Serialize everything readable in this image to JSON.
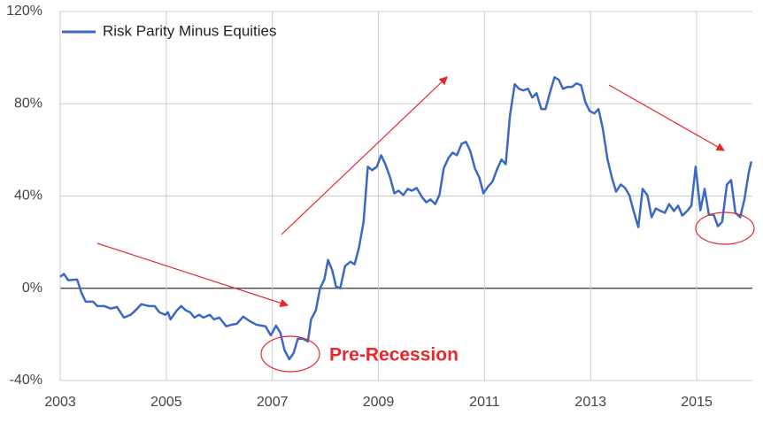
{
  "chart_data": {
    "type": "line",
    "x": [
      2003.0,
      2003.07,
      2003.15,
      2003.32,
      2003.4,
      2003.48,
      2003.62,
      2003.7,
      2003.83,
      2003.95,
      2004.07,
      2004.2,
      2004.33,
      2004.42,
      2004.53,
      2004.67,
      2004.78,
      2004.87,
      2004.98,
      2005.03,
      2005.08,
      2005.2,
      2005.28,
      2005.37,
      2005.45,
      2005.53,
      2005.62,
      2005.7,
      2005.82,
      2005.9,
      2006.0,
      2006.13,
      2006.23,
      2006.33,
      2006.45,
      2006.57,
      2006.7,
      2006.87,
      2006.97,
      2007.07,
      2007.15,
      2007.23,
      2007.32,
      2007.4,
      2007.48,
      2007.58,
      2007.67,
      2007.73,
      2007.82,
      2007.9,
      2007.98,
      2008.05,
      2008.13,
      2008.2,
      2008.28,
      2008.37,
      2008.47,
      2008.55,
      2008.63,
      2008.72,
      2008.8,
      2008.88,
      2008.97,
      2009.05,
      2009.13,
      2009.22,
      2009.3,
      2009.38,
      2009.47,
      2009.55,
      2009.63,
      2009.72,
      2009.82,
      2009.9,
      2009.98,
      2010.07,
      2010.15,
      2010.23,
      2010.32,
      2010.4,
      2010.48,
      2010.57,
      2010.65,
      2010.73,
      2010.82,
      2010.9,
      2010.98,
      2011.07,
      2011.15,
      2011.23,
      2011.32,
      2011.4,
      2011.48,
      2011.57,
      2011.65,
      2011.73,
      2011.82,
      2011.9,
      2011.98,
      2012.07,
      2012.15,
      2012.23,
      2012.32,
      2012.4,
      2012.48,
      2012.57,
      2012.65,
      2012.73,
      2012.82,
      2012.9,
      2012.98,
      2013.07,
      2013.15,
      2013.23,
      2013.32,
      2013.4,
      2013.48,
      2013.57,
      2013.65,
      2013.73,
      2013.82,
      2013.9,
      2013.98,
      2014.07,
      2014.15,
      2014.23,
      2014.32,
      2014.4,
      2014.48,
      2014.57,
      2014.65,
      2014.73,
      2014.82,
      2014.9,
      2014.98,
      2015.07,
      2015.15,
      2015.23,
      2015.32,
      2015.4,
      2015.48,
      2015.57,
      2015.65,
      2015.73,
      2015.82,
      2015.9,
      2015.98,
      2016.03
    ],
    "series": [
      {
        "name": "Risk Parity Minus Equities",
        "color": "#3b68c4",
        "values": [
          5.0,
          6.2,
          3.5,
          3.8,
          -1.9,
          -5.8,
          -5.8,
          -7.7,
          -7.7,
          -8.8,
          -8.1,
          -12.7,
          -11.5,
          -9.6,
          -6.9,
          -7.7,
          -7.7,
          -10.4,
          -11.5,
          -10.4,
          -13.5,
          -9.6,
          -7.7,
          -9.6,
          -10.4,
          -12.7,
          -11.5,
          -12.7,
          -11.5,
          -13.5,
          -12.7,
          -16.5,
          -15.8,
          -15.4,
          -12.3,
          -14.2,
          -15.8,
          -16.5,
          -20.4,
          -16.2,
          -19.2,
          -26.9,
          -30.8,
          -28.1,
          -21.9,
          -21.9,
          -23.1,
          -13.5,
          -9.6,
          0,
          3.8,
          12.3,
          7.7,
          0.8,
          0,
          9.6,
          11.5,
          10.4,
          17.3,
          28.8,
          52.7,
          51.2,
          52.7,
          57.7,
          53.8,
          48.1,
          41.2,
          42.3,
          40.4,
          43.1,
          42.3,
          43.5,
          39.6,
          37.3,
          38.5,
          36.5,
          40.4,
          51.9,
          56.5,
          58.8,
          57.7,
          62.7,
          63.5,
          59.6,
          51.9,
          48.1,
          41.2,
          44.2,
          46.2,
          51.2,
          55.8,
          53.8,
          75.0,
          88.5,
          86.5,
          85.8,
          86.5,
          82.7,
          84.6,
          77.7,
          77.7,
          84.6,
          91.5,
          90.4,
          86.5,
          87.3,
          87.3,
          88.8,
          88.1,
          80.8,
          76.9,
          75.8,
          77.7,
          69.2,
          55.8,
          48.1,
          41.9,
          45.0,
          43.5,
          40.4,
          32.7,
          26.5,
          43.1,
          40.4,
          30.8,
          34.6,
          33.5,
          32.7,
          36.5,
          33.5,
          35.8,
          31.5,
          33.5,
          35.8,
          52.7,
          33.8,
          43.1,
          31.9,
          31.9,
          26.9,
          28.8,
          45.0,
          46.9,
          32.7,
          30.8,
          38.5,
          50.0,
          55.0
        ]
      }
    ],
    "xlim": [
      2003,
      2016.05
    ],
    "xticks": [
      2003,
      2005,
      2007,
      2009,
      2011,
      2013,
      2015
    ],
    "ylim": [
      -40,
      120
    ],
    "yticks": [
      {
        "value": -40,
        "label": "-40%"
      },
      {
        "value": 0,
        "label": "0%"
      },
      {
        "value": 40,
        "label": "40%"
      },
      {
        "value": 80,
        "label": "80%"
      },
      {
        "value": 120,
        "label": "120%"
      }
    ],
    "grid": true,
    "legend": "top-left",
    "annotations": [
      "Pre-Recession"
    ]
  }
}
